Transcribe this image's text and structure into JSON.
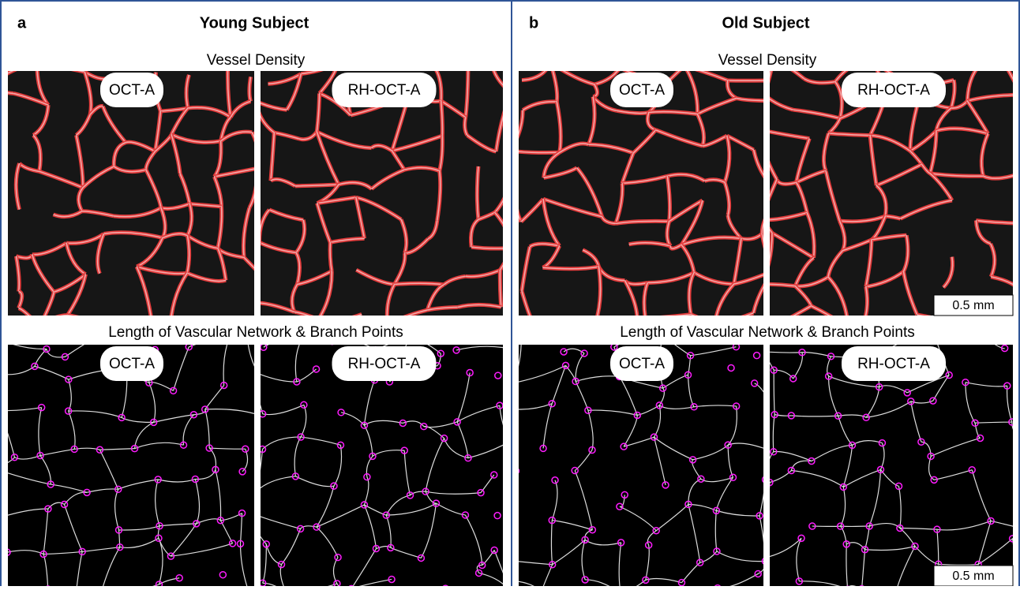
{
  "panels": [
    {
      "letter": "a",
      "title": "Young Subject",
      "sections": [
        {
          "title": "Vessel Density",
          "images": [
            "OCT-A",
            "RH-OCT-A"
          ]
        },
        {
          "title": "Length of Vascular Network & Branch Points",
          "images": [
            "OCT-A",
            "RH-OCT-A"
          ]
        }
      ]
    },
    {
      "letter": "b",
      "title": "Old Subject",
      "sections": [
        {
          "title": "Vessel Density",
          "images": [
            "OCT-A",
            "RH-OCT-A"
          ],
          "scale_bar": "0.5 mm"
        },
        {
          "title": "Length of Vascular Network & Branch Points",
          "images": [
            "OCT-A",
            "RH-OCT-A"
          ],
          "scale_bar": "0.5 mm"
        }
      ]
    }
  ]
}
